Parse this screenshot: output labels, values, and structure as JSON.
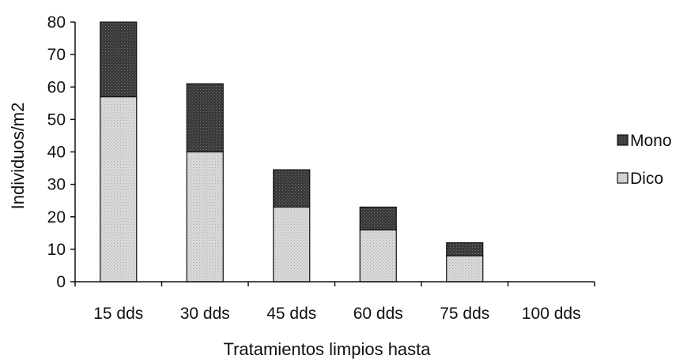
{
  "colors": {
    "mono": "#3a3a3a",
    "dico": "#d6d6d6",
    "axis": "#111111"
  },
  "chart_data": {
    "type": "bar",
    "stacked": true,
    "categories": [
      "15 dds",
      "30 dds",
      "45 dds",
      "60 dds",
      "75 dds",
      "100 dds"
    ],
    "series": [
      {
        "name": "Dico",
        "values": [
          57,
          40,
          23,
          16,
          8,
          0
        ]
      },
      {
        "name": "Mono",
        "values": [
          23,
          21,
          11.5,
          7,
          4,
          0
        ]
      }
    ],
    "title": "",
    "xlabel": "Tratamientos limpios hasta",
    "ylabel": "Individuos/m2",
    "ylim": [
      0,
      80
    ],
    "yticks": [
      0,
      10,
      20,
      30,
      40,
      50,
      60,
      70,
      80
    ],
    "grid": false,
    "legend": {
      "position": "right",
      "order": [
        "Mono",
        "Dico"
      ]
    }
  }
}
